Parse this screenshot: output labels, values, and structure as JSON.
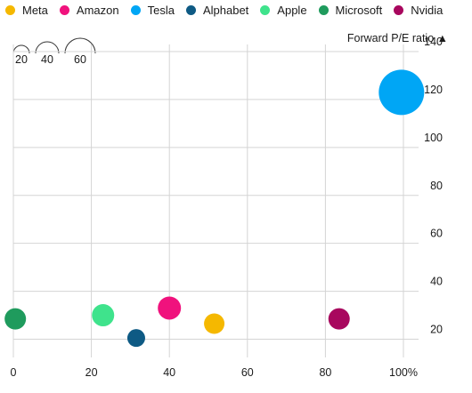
{
  "chart_data": {
    "type": "bubble",
    "ylabel": "Forward P/E ratio ▲",
    "x_ticks": [
      "0",
      "20",
      "40",
      "60",
      "80",
      "100%"
    ],
    "y_ticks": [
      "20",
      "40",
      "60",
      "80",
      "100",
      "120",
      "140"
    ],
    "xlim": [
      0,
      100
    ],
    "ylim": [
      15,
      140
    ],
    "size_legend": [
      20,
      40,
      60
    ],
    "series": [
      {
        "name": "Meta",
        "color": "#f5b800",
        "x": 51.5,
        "y": 26.5,
        "size": 22
      },
      {
        "name": "Amazon",
        "color": "#f0127d",
        "x": 40,
        "y": 33,
        "size": 25
      },
      {
        "name": "Tesla",
        "color": "#00a6f5",
        "x": 99.5,
        "y": 123,
        "size": 50
      },
      {
        "name": "Alphabet",
        "color": "#0e5a84",
        "x": 31.5,
        "y": 20.5,
        "size": 19
      },
      {
        "name": "Apple",
        "color": "#3fe38c",
        "x": 23,
        "y": 30,
        "size": 24
      },
      {
        "name": "Microsoft",
        "color": "#1f9b5d",
        "x": 0.5,
        "y": 28.5,
        "size": 23
      },
      {
        "name": "Nvidia",
        "color": "#a8075e",
        "x": 83.5,
        "y": 28.5,
        "size": 23
      }
    ]
  }
}
